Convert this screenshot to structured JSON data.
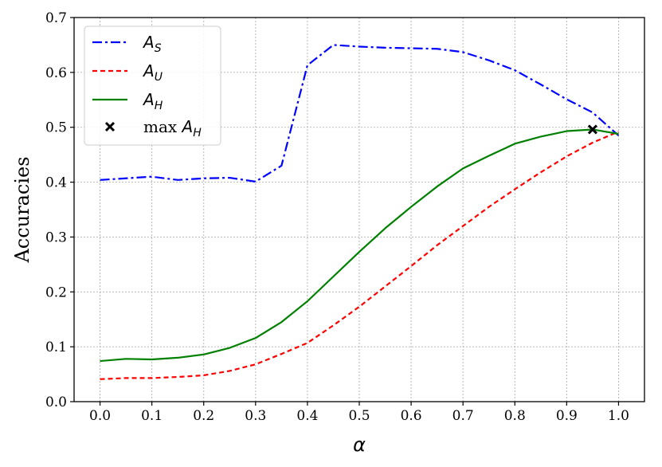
{
  "chart_data": {
    "type": "line",
    "xlabel": "α",
    "ylabel": "Accuracies",
    "xlim": [
      -0.05,
      1.05
    ],
    "ylim": [
      0.0,
      0.7
    ],
    "grid": true,
    "legend_position": "top-left",
    "x_ticks": [
      "0.0",
      "0.1",
      "0.2",
      "0.3",
      "0.4",
      "0.5",
      "0.6",
      "0.7",
      "0.8",
      "0.9",
      "1.0"
    ],
    "y_ticks": [
      "0.0",
      "0.1",
      "0.2",
      "0.3",
      "0.4",
      "0.5",
      "0.6",
      "0.7"
    ],
    "series": [
      {
        "name": "A_S",
        "legend_main": "A",
        "legend_sub": "S",
        "color": "#0000ff",
        "style": "dashdot",
        "x": [
          0.0,
          0.05,
          0.1,
          0.15,
          0.2,
          0.25,
          0.3,
          0.35,
          0.4,
          0.45,
          0.5,
          0.55,
          0.6,
          0.65,
          0.7,
          0.75,
          0.8,
          0.85,
          0.9,
          0.95,
          1.0
        ],
        "y": [
          0.404,
          0.407,
          0.41,
          0.404,
          0.407,
          0.408,
          0.401,
          0.43,
          0.613,
          0.65,
          0.647,
          0.645,
          0.644,
          0.643,
          0.637,
          0.622,
          0.604,
          0.578,
          0.551,
          0.527,
          0.485
        ]
      },
      {
        "name": "A_U",
        "legend_main": "A",
        "legend_sub": "U",
        "color": "#ff0000",
        "style": "dashed",
        "x": [
          0.0,
          0.05,
          0.1,
          0.15,
          0.2,
          0.25,
          0.3,
          0.35,
          0.4,
          0.45,
          0.5,
          0.55,
          0.6,
          0.65,
          0.7,
          0.75,
          0.8,
          0.85,
          0.9,
          0.95,
          1.0
        ],
        "y": [
          0.041,
          0.043,
          0.043,
          0.045,
          0.048,
          0.056,
          0.068,
          0.087,
          0.107,
          0.139,
          0.173,
          0.21,
          0.247,
          0.285,
          0.32,
          0.355,
          0.387,
          0.418,
          0.447,
          0.472,
          0.492
        ]
      },
      {
        "name": "A_H",
        "legend_main": "A",
        "legend_sub": "H",
        "color": "#008000",
        "style": "solid",
        "x": [
          0.0,
          0.05,
          0.1,
          0.15,
          0.2,
          0.25,
          0.3,
          0.35,
          0.4,
          0.45,
          0.5,
          0.55,
          0.6,
          0.65,
          0.7,
          0.75,
          0.8,
          0.85,
          0.9,
          0.95,
          1.0
        ],
        "y": [
          0.074,
          0.078,
          0.077,
          0.08,
          0.086,
          0.098,
          0.116,
          0.145,
          0.183,
          0.228,
          0.273,
          0.316,
          0.355,
          0.392,
          0.425,
          0.448,
          0.47,
          0.483,
          0.493,
          0.496,
          0.488
        ]
      }
    ],
    "marker": {
      "legend_prefix": "max ",
      "legend_main": "A",
      "legend_sub": "H",
      "symbol": "x",
      "color": "#000000",
      "x": 0.95,
      "y": 0.496
    }
  }
}
